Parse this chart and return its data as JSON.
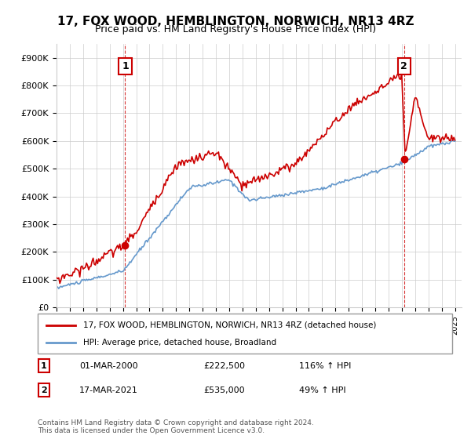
{
  "title": "17, FOX WOOD, HEMBLINGTON, NORWICH, NR13 4RZ",
  "subtitle": "Price paid vs. HM Land Registry's House Price Index (HPI)",
  "legend_line1": "17, FOX WOOD, HEMBLINGTON, NORWICH, NR13 4RZ (detached house)",
  "legend_line2": "HPI: Average price, detached house, Broadland",
  "annotation1_date": "01-MAR-2000",
  "annotation1_price": "£222,500",
  "annotation1_hpi": "116% ↑ HPI",
  "annotation2_date": "17-MAR-2021",
  "annotation2_price": "£535,000",
  "annotation2_hpi": "49% ↑ HPI",
  "footer": "Contains HM Land Registry data © Crown copyright and database right 2024.\nThis data is licensed under the Open Government Licence v3.0.",
  "red_color": "#cc0000",
  "blue_color": "#6699cc",
  "ylim": [
    0,
    950000
  ],
  "yticks": [
    0,
    100000,
    200000,
    300000,
    400000,
    500000,
    600000,
    700000,
    800000,
    900000
  ],
  "ytick_labels": [
    "£0",
    "£100K",
    "£200K",
    "£300K",
    "£400K",
    "£500K",
    "£600K",
    "£700K",
    "£800K",
    "£900K"
  ]
}
